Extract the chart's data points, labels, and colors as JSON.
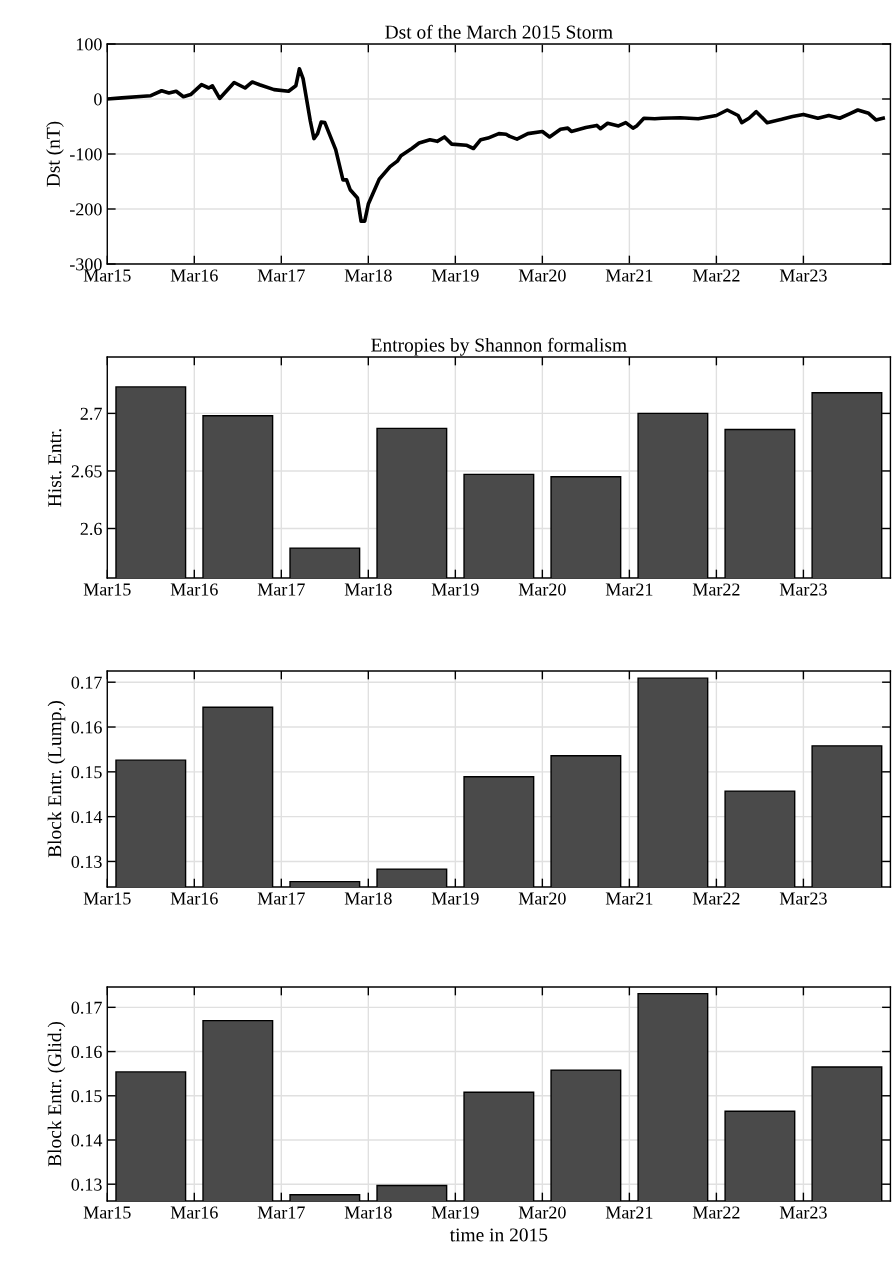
{
  "chart_data": [
    {
      "type": "line",
      "title": "Dst of the March 2015 Storm",
      "ylabel": "Dst (nT)",
      "xlim": [
        "2015-03-15",
        "2015-03-24"
      ],
      "ylim": [
        -300,
        100
      ],
      "yticks": [
        -300,
        -200,
        -100,
        0,
        100
      ],
      "xticks": [
        {
          "value": "2015-03-15",
          "label": "Mar15"
        },
        {
          "value": "2015-03-16",
          "label": "Mar16"
        },
        {
          "value": "2015-03-17",
          "label": "Mar17"
        },
        {
          "value": "2015-03-18",
          "label": "Mar18"
        },
        {
          "value": "2015-03-19",
          "label": "Mar19"
        },
        {
          "value": "2015-03-20",
          "label": "Mar20"
        },
        {
          "value": "2015-03-21",
          "label": "Mar21"
        },
        {
          "value": "2015-03-22",
          "label": "Mar22"
        },
        {
          "value": "2015-03-23",
          "label": "Mar23"
        }
      ],
      "grid": true,
      "line_style": "solid",
      "marker": "none",
      "series": [
        {
          "color": "#000000",
          "x": [
            "2015-03-15T00:00",
            "2015-03-15T04:00",
            "2015-03-15T10:00",
            "2015-03-15T12:00",
            "2015-03-15T15:00",
            "2015-03-15T17:00",
            "2015-03-15T19:00",
            "2015-03-15T21:00",
            "2015-03-15T23:00",
            "2015-03-16T02:00",
            "2015-03-16T04:00",
            "2015-03-16T05:00",
            "2015-03-16T07:00",
            "2015-03-16T11:00",
            "2015-03-16T14:00",
            "2015-03-16T16:00",
            "2015-03-16T18:00",
            "2015-03-16T22:00",
            "2015-03-17T02:00",
            "2015-03-17T04:00",
            "2015-03-17T05:00",
            "2015-03-17T06:00",
            "2015-03-17T08:00",
            "2015-03-17T09:00",
            "2015-03-17T10:00",
            "2015-03-17T11:00",
            "2015-03-17T12:00",
            "2015-03-17T15:00",
            "2015-03-17T17:00",
            "2015-03-17T18:00",
            "2015-03-17T19:00",
            "2015-03-17T21:00",
            "2015-03-17T22:00",
            "2015-03-17T23:00",
            "2015-03-18T00:00",
            "2015-03-18T03:00",
            "2015-03-18T06:00",
            "2015-03-18T08:00",
            "2015-03-18T09:00",
            "2015-03-18T12:00",
            "2015-03-18T14:00",
            "2015-03-18T17:00",
            "2015-03-18T19:00",
            "2015-03-18T21:00",
            "2015-03-18T23:00",
            "2015-03-19T03:00",
            "2015-03-19T05:00",
            "2015-03-19T07:00",
            "2015-03-19T09:00",
            "2015-03-19T12:00",
            "2015-03-19T14:00",
            "2015-03-19T15:00",
            "2015-03-19T17:00",
            "2015-03-19T20:00",
            "2015-03-20T00:00",
            "2015-03-20T02:00",
            "2015-03-20T05:00",
            "2015-03-20T07:00",
            "2015-03-20T08:00",
            "2015-03-20T12:00",
            "2015-03-20T15:00",
            "2015-03-20T16:00",
            "2015-03-20T18:00",
            "2015-03-20T21:00",
            "2015-03-20T23:00",
            "2015-03-21T01:00",
            "2015-03-21T02:00",
            "2015-03-21T04:00",
            "2015-03-21T07:00",
            "2015-03-21T09:00",
            "2015-03-21T14:00",
            "2015-03-21T19:00",
            "2015-03-22T00:00",
            "2015-03-22T03:00",
            "2015-03-22T06:00",
            "2015-03-22T07:00",
            "2015-03-22T09:00",
            "2015-03-22T11:00",
            "2015-03-22T14:00",
            "2015-03-22T18:00",
            "2015-03-22T21:00",
            "2015-03-23T00:00",
            "2015-03-23T04:00",
            "2015-03-23T07:00",
            "2015-03-23T10:00",
            "2015-03-23T13:00",
            "2015-03-23T15:00",
            "2015-03-23T18:00",
            "2015-03-23T20:00",
            "2015-03-23T22:00"
          ],
          "values": [
            0,
            2,
            5,
            6,
            15,
            11,
            14,
            4,
            8,
            26,
            20,
            24,
            1,
            30,
            20,
            31,
            26,
            17,
            14,
            24,
            55,
            37,
            -40,
            -72,
            -63,
            -42,
            -43,
            -92,
            -147,
            -147,
            -165,
            -180,
            -222,
            -222,
            -191,
            -146,
            -123,
            -113,
            -103,
            -90,
            -80,
            -74,
            -77,
            -69,
            -82,
            -84,
            -90,
            -74,
            -71,
            -63,
            -64,
            -68,
            -73,
            -63,
            -59,
            -69,
            -55,
            -53,
            -59,
            -52,
            -48,
            -54,
            -44,
            -49,
            -43,
            -53,
            -49,
            -35,
            -36,
            -35,
            -34,
            -36,
            -30,
            -20,
            -30,
            -43,
            -35,
            -23,
            -43,
            -37,
            -32,
            -28,
            -35,
            -30,
            -35,
            -26,
            -20,
            -26,
            -38,
            -35
          ]
        }
      ]
    },
    {
      "type": "bar",
      "title": "Entropies by Shannon formalism",
      "ylabel": "Hist. Entr.",
      "xlim": [
        "2015-03-15",
        "2015-03-24"
      ],
      "ylim": [
        2.557,
        2.749
      ],
      "yticks": [
        2.6,
        2.65,
        2.7
      ],
      "xticks": [
        {
          "value": "2015-03-15",
          "label": "Mar15"
        },
        {
          "value": "2015-03-16",
          "label": "Mar16"
        },
        {
          "value": "2015-03-17",
          "label": "Mar17"
        },
        {
          "value": "2015-03-18",
          "label": "Mar18"
        },
        {
          "value": "2015-03-19",
          "label": "Mar19"
        },
        {
          "value": "2015-03-20",
          "label": "Mar20"
        },
        {
          "value": "2015-03-21",
          "label": "Mar21"
        },
        {
          "value": "2015-03-22",
          "label": "Mar22"
        },
        {
          "value": "2015-03-23",
          "label": "Mar23"
        }
      ],
      "grid": true,
      "color": "#4a4a4a",
      "x": [
        "2015-03-15T12:00",
        "2015-03-16T12:00",
        "2015-03-17T12:00",
        "2015-03-18T12:00",
        "2015-03-19T12:00",
        "2015-03-20T12:00",
        "2015-03-21T12:00",
        "2015-03-22T12:00",
        "2015-03-23T12:00"
      ],
      "values": [
        2.723,
        2.698,
        2.583,
        2.687,
        2.647,
        2.645,
        2.7,
        2.686,
        2.718
      ]
    },
    {
      "type": "bar",
      "ylabel": "Block Entr. (Lump.)",
      "xlim": [
        "2015-03-15",
        "2015-03-24"
      ],
      "ylim": [
        0.1243,
        0.1725
      ],
      "yticks": [
        0.13,
        0.14,
        0.15,
        0.16,
        0.17
      ],
      "xticks": [
        {
          "value": "2015-03-15",
          "label": "Mar15"
        },
        {
          "value": "2015-03-16",
          "label": "Mar16"
        },
        {
          "value": "2015-03-17",
          "label": "Mar17"
        },
        {
          "value": "2015-03-18",
          "label": "Mar18"
        },
        {
          "value": "2015-03-19",
          "label": "Mar19"
        },
        {
          "value": "2015-03-20",
          "label": "Mar20"
        },
        {
          "value": "2015-03-21",
          "label": "Mar21"
        },
        {
          "value": "2015-03-22",
          "label": "Mar22"
        },
        {
          "value": "2015-03-23",
          "label": "Mar23"
        }
      ],
      "grid": true,
      "color": "#4a4a4a",
      "x": [
        "2015-03-15T12:00",
        "2015-03-16T12:00",
        "2015-03-17T12:00",
        "2015-03-18T12:00",
        "2015-03-19T12:00",
        "2015-03-20T12:00",
        "2015-03-21T12:00",
        "2015-03-22T12:00",
        "2015-03-23T12:00"
      ],
      "values": [
        0.1526,
        0.1644,
        0.1255,
        0.1283,
        0.1489,
        0.1536,
        0.1709,
        0.1457,
        0.1558
      ]
    },
    {
      "type": "bar",
      "ylabel": "Block Entr. (Glid.)",
      "xlabel": "time in 2015",
      "xlim": [
        "2015-03-15",
        "2015-03-24"
      ],
      "ylim": [
        0.1262,
        0.1746
      ],
      "yticks": [
        0.13,
        0.14,
        0.15,
        0.16,
        0.17
      ],
      "xticks": [
        {
          "value": "2015-03-15",
          "label": "Mar15"
        },
        {
          "value": "2015-03-16",
          "label": "Mar16"
        },
        {
          "value": "2015-03-17",
          "label": "Mar17"
        },
        {
          "value": "2015-03-18",
          "label": "Mar18"
        },
        {
          "value": "2015-03-19",
          "label": "Mar19"
        },
        {
          "value": "2015-03-20",
          "label": "Mar20"
        },
        {
          "value": "2015-03-21",
          "label": "Mar21"
        },
        {
          "value": "2015-03-22",
          "label": "Mar22"
        },
        {
          "value": "2015-03-23",
          "label": "Mar23"
        }
      ],
      "grid": true,
      "color": "#4a4a4a",
      "x": [
        "2015-03-15T12:00",
        "2015-03-16T12:00",
        "2015-03-17T12:00",
        "2015-03-18T12:00",
        "2015-03-19T12:00",
        "2015-03-20T12:00",
        "2015-03-21T12:00",
        "2015-03-22T12:00",
        "2015-03-23T12:00"
      ],
      "values": [
        0.1554,
        0.167,
        0.1276,
        0.1297,
        0.1508,
        0.1558,
        0.1731,
        0.1465,
        0.1565
      ]
    }
  ]
}
